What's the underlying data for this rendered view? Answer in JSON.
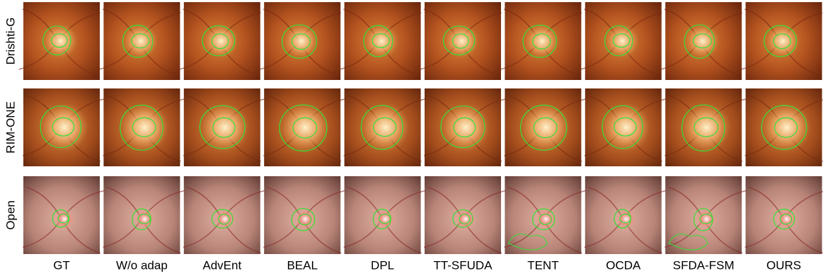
{
  "figure": {
    "rows": [
      "Drishti-G",
      "RIM-ONE",
      "Open"
    ],
    "columns": [
      "GT",
      "W/o adap",
      "AdvEnt",
      "BEAL",
      "DPL",
      "TT-SFUDA",
      "TENT",
      "OCDA",
      "SFDA-FSM",
      "OURS"
    ]
  }
}
